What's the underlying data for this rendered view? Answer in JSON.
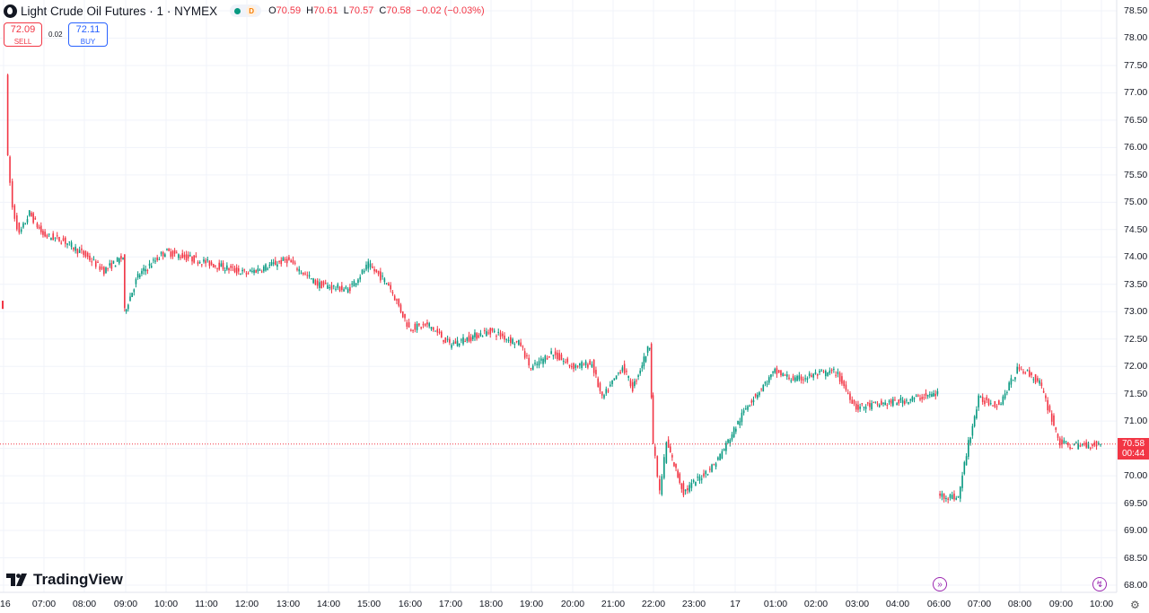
{
  "header": {
    "title": "Light Crude Oil Futures · 1 · NYMEX",
    "delay_badge": "D",
    "ohlc": {
      "o_label": "O",
      "o_value": "70.59",
      "h_label": "H",
      "h_value": "70.61",
      "l_label": "L",
      "l_value": "70.57",
      "c_label": "C",
      "c_value": "70.58",
      "change": "−0.02 (−0.03%)"
    }
  },
  "trade": {
    "sell_price": "72.09",
    "sell_label": "SELL",
    "spread": "0.02",
    "buy_price": "72.11",
    "buy_label": "BUY"
  },
  "logo": {
    "text": "TradingView"
  },
  "price_tag": {
    "price": "70.58",
    "countdown": "00:44"
  },
  "colors": {
    "up": "#089981",
    "down": "#f23645",
    "grid": "#f0f3fa",
    "accent_purple": "#9c27b0"
  },
  "icons": [
    "tradingview-logo-icon",
    "goto-realtime-icon",
    "lightning-icon",
    "settings-gear-icon"
  ],
  "chart_data": {
    "type": "candlestick",
    "interval": "1 minute",
    "symbol": "Light Crude Oil Futures",
    "exchange": "NYMEX",
    "y_ticks": [
      "78.50",
      "78.00",
      "77.50",
      "77.00",
      "76.50",
      "76.00",
      "75.50",
      "75.00",
      "74.50",
      "74.00",
      "73.50",
      "73.00",
      "72.50",
      "72.00",
      "71.50",
      "71.00",
      "70.50",
      "70.00",
      "69.50",
      "69.00",
      "68.50",
      "68.00"
    ],
    "ylim": [
      68.0,
      78.5
    ],
    "x_ticks": [
      "16",
      "07:00",
      "08:00",
      "09:00",
      "10:00",
      "11:00",
      "12:00",
      "13:00",
      "14:00",
      "15:00",
      "16:00",
      "17:00",
      "18:00",
      "19:00",
      "20:00",
      "21:00",
      "22:00",
      "23:00",
      "17",
      "01:00",
      "02:00",
      "03:00",
      "04:00",
      "06:00",
      "07:00",
      "08:00",
      "09:00",
      "10:00"
    ],
    "last_price": 70.58,
    "price_path": [
      {
        "t": "06:05",
        "p": 77.4
      },
      {
        "t": "06:08",
        "p": 75.8
      },
      {
        "t": "06:15",
        "p": 74.9
      },
      {
        "t": "06:25",
        "p": 74.4
      },
      {
        "t": "06:40",
        "p": 74.8
      },
      {
        "t": "07:00",
        "p": 74.4
      },
      {
        "t": "07:30",
        "p": 74.3
      },
      {
        "t": "08:00",
        "p": 74.05
      },
      {
        "t": "08:30",
        "p": 73.75
      },
      {
        "t": "08:58",
        "p": 74.0
      },
      {
        "t": "09:00",
        "p": 73.0
      },
      {
        "t": "09:20",
        "p": 73.65
      },
      {
        "t": "10:00",
        "p": 74.1
      },
      {
        "t": "11:00",
        "p": 73.9
      },
      {
        "t": "12:00",
        "p": 73.7
      },
      {
        "t": "13:00",
        "p": 73.95
      },
      {
        "t": "13:45",
        "p": 73.5
      },
      {
        "t": "14:30",
        "p": 73.4
      },
      {
        "t": "15:00",
        "p": 73.85
      },
      {
        "t": "15:30",
        "p": 73.5
      },
      {
        "t": "16:00",
        "p": 72.7
      },
      {
        "t": "16:30",
        "p": 72.75
      },
      {
        "t": "17:00",
        "p": 72.4
      },
      {
        "t": "18:00",
        "p": 72.65
      },
      {
        "t": "18:45",
        "p": 72.4
      },
      {
        "t": "19:00",
        "p": 71.95
      },
      {
        "t": "19:30",
        "p": 72.25
      },
      {
        "t": "20:00",
        "p": 72.0
      },
      {
        "t": "20:30",
        "p": 72.05
      },
      {
        "t": "20:45",
        "p": 71.4
      },
      {
        "t": "21:15",
        "p": 72.0
      },
      {
        "t": "21:30",
        "p": 71.6
      },
      {
        "t": "21:55",
        "p": 72.4
      },
      {
        "t": "22:00",
        "p": 70.6
      },
      {
        "t": "22:10",
        "p": 69.7
      },
      {
        "t": "22:20",
        "p": 70.6
      },
      {
        "t": "22:45",
        "p": 69.7
      },
      {
        "t": "23:30",
        "p": 70.2
      },
      {
        "t": "23:45",
        "p": 70.5
      },
      {
        "t": "00:20",
        "p": 71.3
      },
      {
        "t": "01:00",
        "p": 71.9
      },
      {
        "t": "01:30",
        "p": 71.75
      },
      {
        "t": "02:00",
        "p": 71.85
      },
      {
        "t": "02:30",
        "p": 71.9
      },
      {
        "t": "03:00",
        "p": 71.25
      },
      {
        "t": "04:00",
        "p": 71.35
      },
      {
        "t": "05:00",
        "p": 71.5
      },
      {
        "t": "06:00",
        "p": 69.65
      },
      {
        "t": "06:30",
        "p": 69.6
      },
      {
        "t": "06:45",
        "p": 70.6
      },
      {
        "t": "07:00",
        "p": 71.4
      },
      {
        "t": "07:30",
        "p": 71.3
      },
      {
        "t": "08:00",
        "p": 72.0
      },
      {
        "t": "08:30",
        "p": 71.7
      },
      {
        "t": "09:00",
        "p": 70.6
      },
      {
        "t": "09:15",
        "p": 70.55
      },
      {
        "t": "10:00",
        "p": 70.58
      }
    ]
  }
}
